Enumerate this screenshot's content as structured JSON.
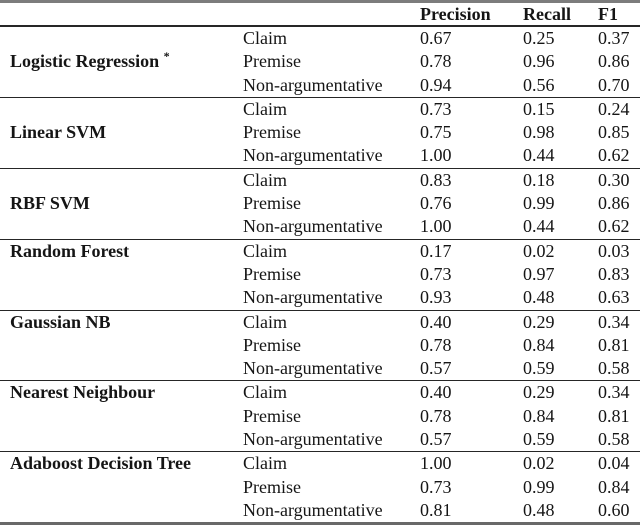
{
  "table": {
    "headers": {
      "model": "",
      "class": "",
      "precision": "Precision",
      "recall": "Recall",
      "f1": "F1"
    },
    "groups": [
      {
        "model": "Logistic Regression",
        "note": "*",
        "name_align": "middle",
        "rows": [
          {
            "label": "Claim",
            "precision": "0.67",
            "recall": "0.25",
            "f1": "0.37"
          },
          {
            "label": "Premise",
            "precision": "0.78",
            "recall": "0.96",
            "f1": "0.86"
          },
          {
            "label": "Non-argumentative",
            "precision": "0.94",
            "recall": "0.56",
            "f1": "0.70"
          }
        ]
      },
      {
        "model": "Linear SVM",
        "note": "",
        "name_align": "middle",
        "rows": [
          {
            "label": "Claim",
            "precision": "0.73",
            "recall": "0.15",
            "f1": "0.24"
          },
          {
            "label": "Premise",
            "precision": "0.75",
            "recall": "0.98",
            "f1": "0.85"
          },
          {
            "label": "Non-argumentative",
            "precision": "1.00",
            "recall": "0.44",
            "f1": "0.62"
          }
        ]
      },
      {
        "model": "RBF SVM",
        "note": "",
        "name_align": "middle",
        "rows": [
          {
            "label": "Claim",
            "precision": "0.83",
            "recall": "0.18",
            "f1": "0.30"
          },
          {
            "label": "Premise",
            "precision": "0.76",
            "recall": "0.99",
            "f1": "0.86"
          },
          {
            "label": "Non-argumentative",
            "precision": "1.00",
            "recall": "0.44",
            "f1": "0.62"
          }
        ]
      },
      {
        "model": "Random Forest",
        "note": "",
        "name_align": "top",
        "rows": [
          {
            "label": "Claim",
            "precision": "0.17",
            "recall": "0.02",
            "f1": "0.03"
          },
          {
            "label": "Premise",
            "precision": "0.73",
            "recall": "0.97",
            "f1": "0.83"
          },
          {
            "label": "Non-argumentative",
            "precision": "0.93",
            "recall": "0.48",
            "f1": "0.63"
          }
        ]
      },
      {
        "model": "Gaussian NB",
        "note": "",
        "name_align": "top",
        "rows": [
          {
            "label": "Claim",
            "precision": "0.40",
            "recall": "0.29",
            "f1": "0.34"
          },
          {
            "label": "Premise",
            "precision": "0.78",
            "recall": "0.84",
            "f1": "0.81"
          },
          {
            "label": "Non-argumentative",
            "precision": "0.57",
            "recall": "0.59",
            "f1": "0.58"
          }
        ]
      },
      {
        "model": "Nearest Neighbour",
        "note": "",
        "name_align": "top",
        "rows": [
          {
            "label": "Claim",
            "precision": "0.40",
            "recall": "0.29",
            "f1": "0.34"
          },
          {
            "label": "Premise",
            "precision": "0.78",
            "recall": "0.84",
            "f1": "0.81"
          },
          {
            "label": "Non-argumentative",
            "precision": "0.57",
            "recall": "0.59",
            "f1": "0.58"
          }
        ]
      },
      {
        "model": "Adaboost Decision Tree",
        "note": "",
        "name_align": "top",
        "rows": [
          {
            "label": "Claim",
            "precision": "1.00",
            "recall": "0.02",
            "f1": "0.04"
          },
          {
            "label": "Premise",
            "precision": "0.73",
            "recall": "0.99",
            "f1": "0.84"
          },
          {
            "label": "Non-argumentative",
            "precision": "0.81",
            "recall": "0.48",
            "f1": "0.60"
          }
        ]
      }
    ]
  },
  "colors": {
    "text": "#151515",
    "top_rule": "#7c7c7c",
    "bottom_rule": "#686868",
    "mid_rule": "#262626"
  }
}
